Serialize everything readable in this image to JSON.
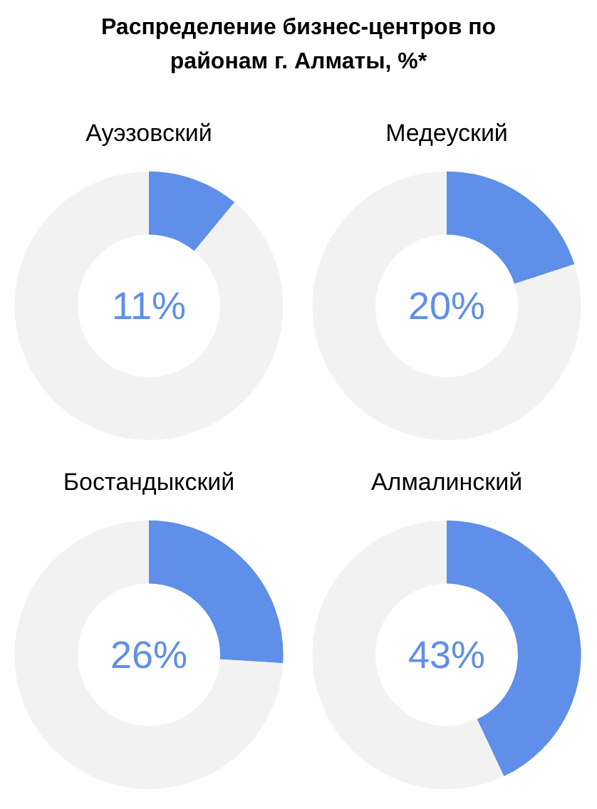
{
  "chart_data": [
    {
      "type": "other",
      "title": "Распределение бизнес-центров по районам г. Алматы, %*"
    },
    {
      "type": "donut",
      "title": "Ауэзовский",
      "categories": [
        null,
        null
      ],
      "values": [
        11,
        89
      ],
      "colors": [
        "#5f8fe8",
        "#f2f2f2"
      ],
      "annotations": [
        "11%"
      ]
    },
    {
      "type": "donut",
      "title": "Медеуский",
      "categories": [
        null,
        null
      ],
      "values": [
        20,
        80
      ],
      "colors": [
        "#5f8fe8",
        "#f2f2f2"
      ],
      "annotations": [
        "20%"
      ]
    },
    {
      "type": "donut",
      "title": "Бостандыкский",
      "categories": [
        null,
        null
      ],
      "values": [
        26,
        74
      ],
      "colors": [
        "#5f8fe8",
        "#f2f2f2"
      ],
      "annotations": [
        "26%"
      ]
    },
    {
      "type": "donut",
      "title": "Алмалинский",
      "categories": [
        null,
        null
      ],
      "values": [
        43,
        57
      ],
      "colors": [
        "#5f8fe8",
        "#f2f2f2"
      ],
      "annotations": [
        "43%"
      ]
    }
  ]
}
